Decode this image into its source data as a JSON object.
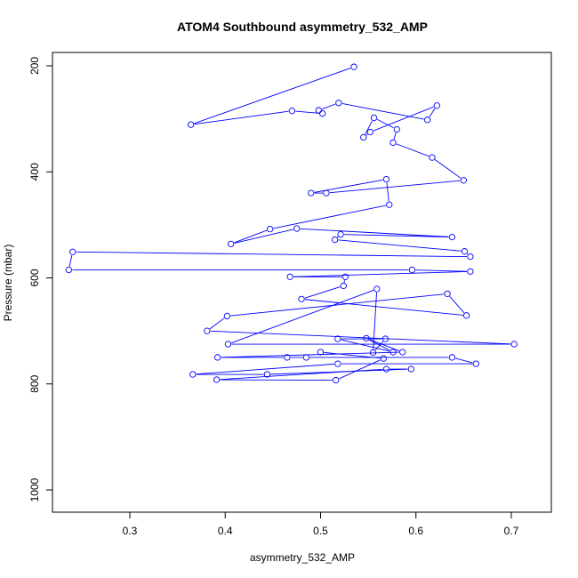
{
  "chart_data": {
    "type": "line",
    "title": "ATOM4 Southbound asymmetry_532_AMP",
    "xlabel": "asymmetry_532_AMP",
    "ylabel": "Pressure (mbar)",
    "xlim": [
      0.22,
      0.74
    ],
    "ylim": [
      1040,
      180
    ],
    "y_reversed": true,
    "grid": false,
    "legend": "none",
    "xticks": [
      0.3,
      0.4,
      0.5,
      0.6,
      0.7
    ],
    "yticks": [
      200,
      400,
      600,
      800,
      1000
    ],
    "xtick_labels": [
      "0.3",
      "0.4",
      "0.5",
      "0.6",
      "0.7"
    ],
    "ytick_labels": [
      "200",
      "400",
      "600",
      "800",
      "1000"
    ],
    "color": "#0000ff",
    "series": [
      {
        "marker": "open-circle",
        "x": [
          0.535,
          0.364,
          0.47,
          0.502,
          0.498,
          0.519,
          0.612,
          0.622,
          0.552,
          0.545,
          0.556,
          0.58,
          0.576,
          0.617,
          0.65,
          0.506,
          0.49,
          0.569,
          0.572,
          0.447,
          0.406,
          0.475,
          0.638,
          0.521,
          0.515,
          0.651,
          0.657,
          0.24,
          0.236,
          0.596,
          0.657,
          0.468,
          0.526,
          0.524,
          0.48,
          0.653,
          0.633,
          0.402,
          0.381,
          0.703,
          0.403,
          0.559,
          0.555,
          0.568,
          0.518,
          0.576,
          0.548,
          0.586,
          0.392,
          0.465,
          0.485,
          0.638,
          0.663,
          0.518,
          0.366,
          0.444,
          0.595,
          0.569,
          0.391,
          0.516,
          0.566,
          0.5
        ],
        "y": [
          202,
          311,
          285,
          290,
          284,
          270,
          302,
          275,
          325,
          335,
          298,
          320,
          345,
          373,
          416,
          440,
          440,
          414,
          462,
          508,
          536,
          507,
          523,
          518,
          528,
          550,
          560,
          551,
          585,
          585,
          588,
          598,
          598,
          615,
          640,
          671,
          630,
          672,
          700,
          725,
          725,
          621,
          741,
          715,
          715,
          740,
          714,
          740,
          750,
          750,
          750,
          750,
          762,
          762,
          782,
          782,
          772,
          772,
          792,
          793,
          752,
          740
        ]
      }
    ]
  }
}
